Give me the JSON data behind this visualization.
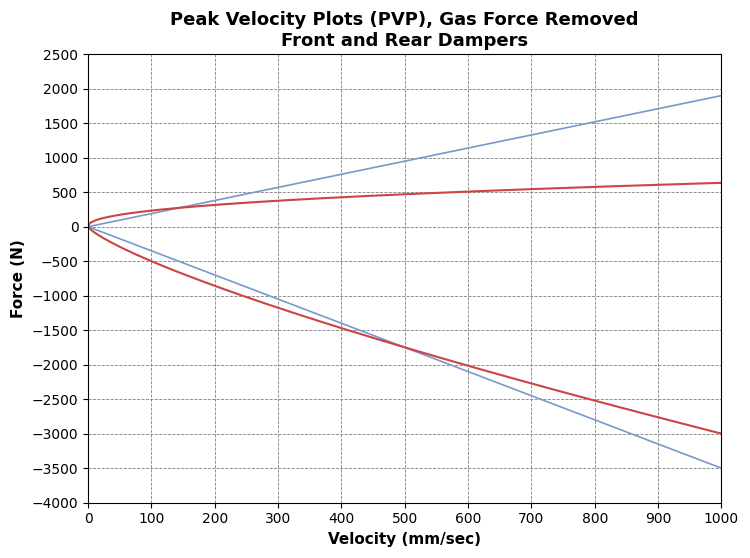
{
  "title": "Peak Velocity Plots (PVP), Gas Force Removed\nFront and Rear Dampers",
  "xlabel": "Velocity (mm/sec)",
  "ylabel": "Force (N)",
  "xlim": [
    0,
    1000
  ],
  "ylim": [
    -4000,
    2500
  ],
  "xticks": [
    0,
    100,
    200,
    300,
    400,
    500,
    600,
    700,
    800,
    900,
    1000
  ],
  "yticks": [
    -4000,
    -3500,
    -3000,
    -2500,
    -2000,
    -1500,
    -1000,
    -500,
    0,
    500,
    1000,
    1500,
    2000,
    2500
  ],
  "background_color": "#ffffff",
  "grid_color": "#808080",
  "blue_color": "#7799CC",
  "red_color": "#CC4444",
  "title_fontsize": 13,
  "label_fontsize": 11,
  "tick_fontsize": 10,
  "blue_rebound_slope": 1.9,
  "blue_compression_slope": -3.5,
  "red_rebound_C": 31.5,
  "red_rebound_exp": 0.435,
  "red_compression_C": -13.9,
  "red_compression_exp": 0.778
}
